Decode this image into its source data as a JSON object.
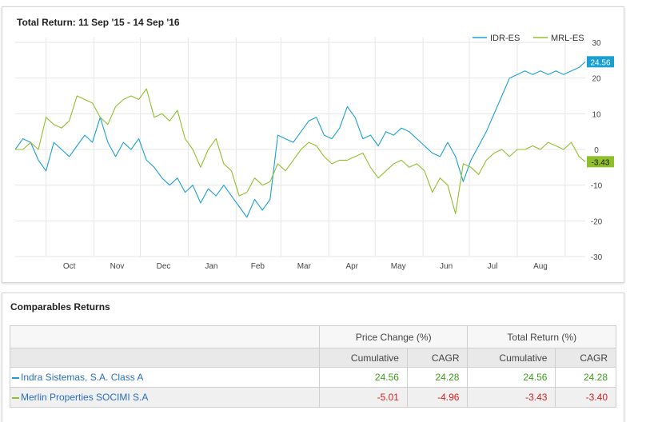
{
  "chart_panel": {
    "title": "Total Return: 11 Sep '15 - 14 Sep '16"
  },
  "chart_data": {
    "type": "line",
    "title": "Total Return: 11 Sep '15 - 14 Sep '16",
    "xlabel": "",
    "ylabel": "",
    "x_ticks": [
      "Oct",
      "Nov",
      "Dec",
      "Jan",
      "Feb",
      "Mar",
      "Apr",
      "May",
      "Jun",
      "Jul",
      "Aug"
    ],
    "y_ticks": [
      30,
      20,
      10,
      0,
      -10,
      -20,
      -30
    ],
    "ylim": [
      -30,
      30
    ],
    "x_domain": [
      "2015-09-11",
      "2016-09-14"
    ],
    "grid": true,
    "legend_position": "top-right",
    "series": [
      {
        "name": "IDR-ES",
        "color": "#1a9fd3",
        "last_value_label": "24.56",
        "points": [
          [
            "2015-09-11",
            0
          ],
          [
            "2015-09-16",
            3
          ],
          [
            "2015-09-21",
            2
          ],
          [
            "2015-09-26",
            -3
          ],
          [
            "2015-10-01",
            -6
          ],
          [
            "2015-10-06",
            2
          ],
          [
            "2015-10-11",
            0
          ],
          [
            "2015-10-16",
            -2
          ],
          [
            "2015-10-21",
            1
          ],
          [
            "2015-10-26",
            4
          ],
          [
            "2015-10-31",
            2
          ],
          [
            "2015-11-05",
            9
          ],
          [
            "2015-11-10",
            2
          ],
          [
            "2015-11-15",
            -2
          ],
          [
            "2015-11-20",
            2
          ],
          [
            "2015-11-25",
            0
          ],
          [
            "2015-11-30",
            3
          ],
          [
            "2015-12-05",
            -3
          ],
          [
            "2015-12-10",
            -5
          ],
          [
            "2015-12-15",
            -8
          ],
          [
            "2015-12-20",
            -10
          ],
          [
            "2015-12-25",
            -8
          ],
          [
            "2015-12-30",
            -12
          ],
          [
            "2016-01-04",
            -10
          ],
          [
            "2016-01-09",
            -15
          ],
          [
            "2016-01-14",
            -11
          ],
          [
            "2016-01-19",
            -13
          ],
          [
            "2016-01-24",
            -10
          ],
          [
            "2016-01-29",
            -13
          ],
          [
            "2016-02-03",
            -16
          ],
          [
            "2016-02-08",
            -19
          ],
          [
            "2016-02-13",
            -14
          ],
          [
            "2016-02-18",
            -17
          ],
          [
            "2016-02-23",
            -14
          ],
          [
            "2016-02-28",
            4
          ],
          [
            "2016-03-04",
            3
          ],
          [
            "2016-03-09",
            2
          ],
          [
            "2016-03-14",
            5
          ],
          [
            "2016-03-19",
            8
          ],
          [
            "2016-03-24",
            9
          ],
          [
            "2016-03-29",
            4
          ],
          [
            "2016-04-03",
            3
          ],
          [
            "2016-04-08",
            6
          ],
          [
            "2016-04-13",
            12
          ],
          [
            "2016-04-18",
            9
          ],
          [
            "2016-04-23",
            3
          ],
          [
            "2016-04-28",
            4
          ],
          [
            "2016-05-03",
            1
          ],
          [
            "2016-05-08",
            5
          ],
          [
            "2016-05-13",
            4
          ],
          [
            "2016-05-18",
            6
          ],
          [
            "2016-05-23",
            5
          ],
          [
            "2016-05-28",
            3
          ],
          [
            "2016-06-02",
            1
          ],
          [
            "2016-06-07",
            -1
          ],
          [
            "2016-06-12",
            -2
          ],
          [
            "2016-06-17",
            2
          ],
          [
            "2016-06-22",
            -2
          ],
          [
            "2016-06-27",
            -9
          ],
          [
            "2016-07-02",
            -3
          ],
          [
            "2016-07-07",
            1
          ],
          [
            "2016-07-12",
            5
          ],
          [
            "2016-07-17",
            10
          ],
          [
            "2016-07-22",
            15
          ],
          [
            "2016-07-27",
            20
          ],
          [
            "2016-08-01",
            21
          ],
          [
            "2016-08-06",
            22
          ],
          [
            "2016-08-11",
            21
          ],
          [
            "2016-08-16",
            22
          ],
          [
            "2016-08-21",
            21
          ],
          [
            "2016-08-26",
            22
          ],
          [
            "2016-08-31",
            21
          ],
          [
            "2016-09-05",
            22
          ],
          [
            "2016-09-10",
            23
          ],
          [
            "2016-09-14",
            24.56
          ]
        ]
      },
      {
        "name": "MRL-ES",
        "color": "#8fbf2c",
        "last_value_label": "-3.43",
        "points": [
          [
            "2015-09-11",
            0
          ],
          [
            "2015-09-16",
            0
          ],
          [
            "2015-09-21",
            2
          ],
          [
            "2015-09-26",
            0
          ],
          [
            "2015-10-01",
            9
          ],
          [
            "2015-10-06",
            7
          ],
          [
            "2015-10-11",
            6
          ],
          [
            "2015-10-16",
            8
          ],
          [
            "2015-10-21",
            15
          ],
          [
            "2015-10-26",
            14
          ],
          [
            "2015-10-31",
            13
          ],
          [
            "2015-11-05",
            9
          ],
          [
            "2015-11-10",
            7
          ],
          [
            "2015-11-15",
            12
          ],
          [
            "2015-11-20",
            14
          ],
          [
            "2015-11-25",
            15
          ],
          [
            "2015-11-30",
            14
          ],
          [
            "2015-12-05",
            17
          ],
          [
            "2015-12-10",
            9
          ],
          [
            "2015-12-15",
            10
          ],
          [
            "2015-12-20",
            8
          ],
          [
            "2015-12-25",
            11
          ],
          [
            "2015-12-30",
            3
          ],
          [
            "2016-01-04",
            0
          ],
          [
            "2016-01-09",
            -5
          ],
          [
            "2016-01-14",
            0
          ],
          [
            "2016-01-19",
            3
          ],
          [
            "2016-01-24",
            -4
          ],
          [
            "2016-01-29",
            -6
          ],
          [
            "2016-02-03",
            -13
          ],
          [
            "2016-02-08",
            -12
          ],
          [
            "2016-02-13",
            -8
          ],
          [
            "2016-02-18",
            -10
          ],
          [
            "2016-02-23",
            -9
          ],
          [
            "2016-02-28",
            -4
          ],
          [
            "2016-03-04",
            -6
          ],
          [
            "2016-03-09",
            -3
          ],
          [
            "2016-03-14",
            0
          ],
          [
            "2016-03-19",
            2
          ],
          [
            "2016-03-24",
            1
          ],
          [
            "2016-03-29",
            -2
          ],
          [
            "2016-04-03",
            -4
          ],
          [
            "2016-04-08",
            -3
          ],
          [
            "2016-04-13",
            -3
          ],
          [
            "2016-04-18",
            -2
          ],
          [
            "2016-04-23",
            -1
          ],
          [
            "2016-04-28",
            -5
          ],
          [
            "2016-05-03",
            -8
          ],
          [
            "2016-05-08",
            -6
          ],
          [
            "2016-05-13",
            -4
          ],
          [
            "2016-05-18",
            -3
          ],
          [
            "2016-05-23",
            -5
          ],
          [
            "2016-05-28",
            -4
          ],
          [
            "2016-06-02",
            -6
          ],
          [
            "2016-06-07",
            -12
          ],
          [
            "2016-06-12",
            -8
          ],
          [
            "2016-06-17",
            -10
          ],
          [
            "2016-06-22",
            -18
          ],
          [
            "2016-06-27",
            -4
          ],
          [
            "2016-07-02",
            -5
          ],
          [
            "2016-07-07",
            -7
          ],
          [
            "2016-07-12",
            -3
          ],
          [
            "2016-07-17",
            -1
          ],
          [
            "2016-07-22",
            0
          ],
          [
            "2016-07-27",
            -2
          ],
          [
            "2016-08-01",
            0
          ],
          [
            "2016-08-06",
            0
          ],
          [
            "2016-08-11",
            1
          ],
          [
            "2016-08-16",
            0
          ],
          [
            "2016-08-21",
            2
          ],
          [
            "2016-08-26",
            1
          ],
          [
            "2016-08-31",
            0
          ],
          [
            "2016-09-05",
            2
          ],
          [
            "2016-09-10",
            -2
          ],
          [
            "2016-09-14",
            -3.43
          ]
        ]
      }
    ]
  },
  "comparables": {
    "title": "Comparables Returns",
    "group_headers": [
      "Price Change (%)",
      "Total Return (%)"
    ],
    "sub_headers": [
      "Cumulative",
      "CAGR",
      "Cumulative",
      "CAGR"
    ],
    "rows": [
      {
        "name": "Indra Sistemas, S.A. Class A",
        "color": "#1a9fd3",
        "values": [
          "24.56",
          "24.28",
          "24.56",
          "24.28"
        ]
      },
      {
        "name": "Merlin Properties SOCIMI S.A",
        "color": "#8fbf2c",
        "values": [
          "-5.01",
          "-4.96",
          "-3.43",
          "-3.40"
        ]
      }
    ]
  }
}
